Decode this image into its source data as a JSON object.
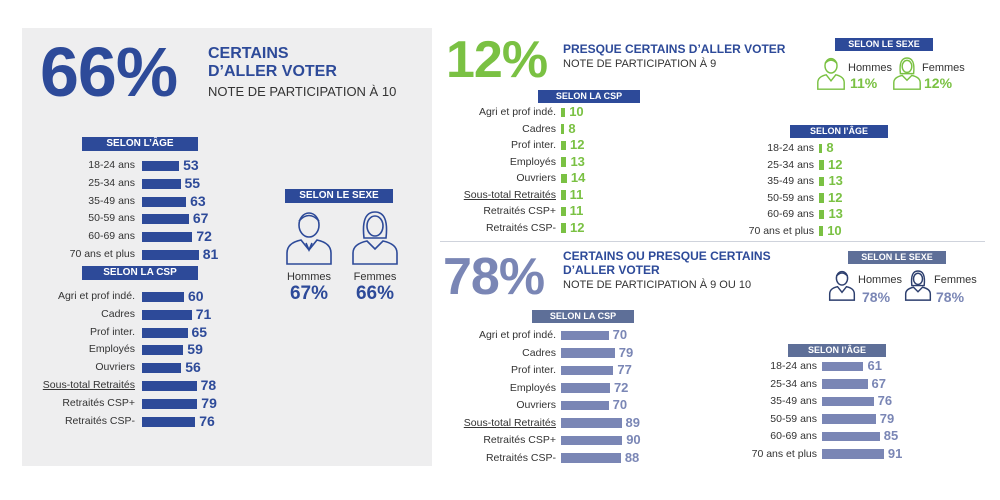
{
  "colors": {
    "navy": "#2d4a99",
    "green": "#7ac143",
    "slate": "#7a86b5",
    "slate_dark": "#5e6f98"
  },
  "panel1": {
    "big": "66%",
    "title1": "CERTAINS",
    "title2": "D’ALLER VOTER",
    "subtitle": "NOTE DE PARTICIPATION À 10",
    "age_header": "SELON L’ÂGE",
    "age": [
      {
        "label": "18-24 ans",
        "value": 53
      },
      {
        "label": "25-34 ans",
        "value": 55
      },
      {
        "label": "35-49 ans",
        "value": 63
      },
      {
        "label": "50-59 ans",
        "value": 67
      },
      {
        "label": "60-69 ans",
        "value": 72
      },
      {
        "label": "70 ans et plus",
        "value": 81
      }
    ],
    "csp_header": "SELON LA CSP",
    "csp": [
      {
        "label": "Agri et prof indé.",
        "value": 60
      },
      {
        "label": "Cadres",
        "value": 71
      },
      {
        "label": "Prof inter.",
        "value": 65
      },
      {
        "label": "Employés",
        "value": 59
      },
      {
        "label": "Ouvriers",
        "value": 56
      },
      {
        "label": "Sous-total Retraités",
        "value": 78,
        "underline": true
      },
      {
        "label": "Retraités CSP+",
        "value": 79
      },
      {
        "label": "Retraités CSP-",
        "value": 76
      }
    ],
    "sex_header": "SELON LE SEXE",
    "sex": [
      {
        "label": "Hommes",
        "pct": "67%"
      },
      {
        "label": "Femmes",
        "pct": "66%"
      }
    ]
  },
  "panel2": {
    "big": "12%",
    "title1": "PRESQUE CERTAINS D’ALLER VOTER",
    "subtitle": "NOTE DE PARTICIPATION À 9",
    "csp_header": "SELON LA CSP",
    "csp": [
      {
        "label": "Agri et prof indé.",
        "value": 10
      },
      {
        "label": "Cadres",
        "value": 8
      },
      {
        "label": "Prof inter.",
        "value": 12
      },
      {
        "label": "Employés",
        "value": 13
      },
      {
        "label": "Ouvriers",
        "value": 14
      },
      {
        "label": "Sous-total Retraités",
        "value": 11,
        "underline": true
      },
      {
        "label": "Retraités CSP+",
        "value": 11
      },
      {
        "label": "Retraités CSP-",
        "value": 12
      }
    ],
    "age_header": "SELON l’ÂGE",
    "age": [
      {
        "label": "18-24 ans",
        "value": 8
      },
      {
        "label": "25-34 ans",
        "value": 12
      },
      {
        "label": "35-49 ans",
        "value": 13
      },
      {
        "label": "50-59 ans",
        "value": 12
      },
      {
        "label": "60-69 ans",
        "value": 13
      },
      {
        "label": "70 ans et plus",
        "value": 10
      }
    ],
    "sex_header": "SELON LE SEXE",
    "sex": [
      {
        "label": "Hommes",
        "pct": "11%"
      },
      {
        "label": "Femmes",
        "pct": "12%"
      }
    ]
  },
  "panel3": {
    "big": "78%",
    "title1": "CERTAINS OU PRESQUE CERTAINS",
    "title2": "D’ALLER VOTER",
    "subtitle": "NOTE DE PARTICIPATION À 9 OU 10",
    "csp_header": "SELON LA CSP",
    "csp": [
      {
        "label": "Agri et prof indé.",
        "value": 70
      },
      {
        "label": "Cadres",
        "value": 79
      },
      {
        "label": "Prof inter.",
        "value": 77
      },
      {
        "label": "Employés",
        "value": 72
      },
      {
        "label": "Ouvriers",
        "value": 70
      },
      {
        "label": "Sous-total Retraités",
        "value": 89,
        "underline": true
      },
      {
        "label": "Retraités CSP+",
        "value": 90
      },
      {
        "label": "Retraités CSP-",
        "value": 88
      }
    ],
    "age_header": "SELON l’ÂGE",
    "age": [
      {
        "label": "18-24 ans",
        "value": 61
      },
      {
        "label": "25-34 ans",
        "value": 67
      },
      {
        "label": "35-49 ans",
        "value": 76
      },
      {
        "label": "50-59 ans",
        "value": 79
      },
      {
        "label": "60-69 ans",
        "value": 85
      },
      {
        "label": "70 ans et plus",
        "value": 91
      }
    ],
    "sex_header": "SELON LE SEXE",
    "sex": [
      {
        "label": "Hommes",
        "pct": "78%"
      },
      {
        "label": "Femmes",
        "pct": "78%"
      }
    ]
  },
  "chart_data": [
    {
      "type": "bar",
      "title": "66% CERTAINS D’ALLER VOTER — SELON L’ÂGE",
      "categories": [
        "18-24 ans",
        "25-34 ans",
        "35-49 ans",
        "50-59 ans",
        "60-69 ans",
        "70 ans et plus"
      ],
      "values": [
        53,
        55,
        63,
        67,
        72,
        81
      ]
    },
    {
      "type": "bar",
      "title": "66% CERTAINS D’ALLER VOTER — SELON LA CSP",
      "categories": [
        "Agri et prof indé.",
        "Cadres",
        "Prof inter.",
        "Employés",
        "Ouvriers",
        "Sous-total Retraités",
        "Retraités CSP+",
        "Retraités CSP-"
      ],
      "values": [
        60,
        71,
        65,
        59,
        56,
        78,
        79,
        76
      ]
    },
    {
      "type": "bar",
      "title": "12% PRESQUE CERTAINS D’ALLER VOTER — SELON LA CSP",
      "categories": [
        "Agri et prof indé.",
        "Cadres",
        "Prof inter.",
        "Employés",
        "Ouvriers",
        "Sous-total Retraités",
        "Retraités CSP+",
        "Retraités CSP-"
      ],
      "values": [
        10,
        8,
        12,
        13,
        14,
        11,
        11,
        12
      ]
    },
    {
      "type": "bar",
      "title": "12% PRESQUE CERTAINS D’ALLER VOTER — SELON l’ÂGE",
      "categories": [
        "18-24 ans",
        "25-34 ans",
        "35-49 ans",
        "50-59 ans",
        "60-69 ans",
        "70 ans et plus"
      ],
      "values": [
        8,
        12,
        13,
        12,
        13,
        10
      ]
    },
    {
      "type": "bar",
      "title": "78% CERTAINS OU PRESQUE CERTAINS D’ALLER VOTER — SELON LA CSP",
      "categories": [
        "Agri et prof indé.",
        "Cadres",
        "Prof inter.",
        "Employés",
        "Ouvriers",
        "Sous-total Retraités",
        "Retraités CSP+",
        "Retraités CSP-"
      ],
      "values": [
        70,
        79,
        77,
        72,
        70,
        89,
        90,
        88
      ]
    },
    {
      "type": "bar",
      "title": "78% CERTAINS OU PRESQUE CERTAINS D’ALLER VOTER — SELON l’ÂGE",
      "categories": [
        "18-24 ans",
        "25-34 ans",
        "35-49 ans",
        "50-59 ans",
        "60-69 ans",
        "70 ans et plus"
      ],
      "values": [
        61,
        67,
        76,
        79,
        85,
        91
      ]
    }
  ]
}
